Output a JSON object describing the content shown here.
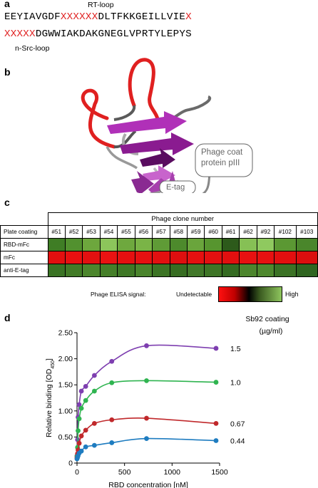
{
  "panels": {
    "a": "a",
    "b": "b",
    "c": "c",
    "d": "d"
  },
  "panel_a": {
    "rt_loop_label": "RT-loop",
    "nsrc_loop_label": "n-Src-loop",
    "line1": [
      {
        "text": "EEYIAVGDF",
        "color": "black"
      },
      {
        "text": "XXXXXX",
        "color": "red"
      },
      {
        "text": "DLTFKKGEILLVIE",
        "color": "black"
      },
      {
        "text": "X",
        "color": "red"
      }
    ],
    "line2": [
      {
        "text": "XXXXX",
        "color": "red"
      },
      {
        "text": "DGWWIAKDAKGNEGLVPRTYLEPYS",
        "color": "black"
      }
    ]
  },
  "panel_b": {
    "coat_label_1": "Phage coat",
    "coat_label_2": "protein pIII",
    "etag_label": "E-tag"
  },
  "panel_c": {
    "table_title": "Phage clone number",
    "row_header": "Plate coating",
    "clones": [
      "#51",
      "#52",
      "#53",
      "#54",
      "#55",
      "#56",
      "#57",
      "#58",
      "#59",
      "#60",
      "#61",
      "#62",
      "#92",
      "#102",
      "#103"
    ],
    "rows": [
      {
        "label": "RBD-mFc",
        "colors": [
          "#3f7d25",
          "#52912f",
          "#6da73d",
          "#8cc55b",
          "#6ea83e",
          "#7ab447",
          "#5f9b36",
          "#4d8a2c",
          "#6aa53c",
          "#57952f",
          "#2d5a1b",
          "#86c055",
          "#8fc95f",
          "#5b9833",
          "#4a862b"
        ]
      },
      {
        "label": "mFc",
        "colors": [
          "#e30f0f",
          "#e81010",
          "#e31010",
          "#ea1212",
          "#e51010",
          "#e61111",
          "#e21010",
          "#de0f0f",
          "#e51010",
          "#e31010",
          "#e10f0f",
          "#e81111",
          "#e71111",
          "#e20f0f",
          "#db0e0e"
        ]
      },
      {
        "label": "anti-E-tag",
        "colors": [
          "#3a7324",
          "#427b27",
          "#4c862d",
          "#457f29",
          "#3f7826",
          "#4a842c",
          "#3c7425",
          "#376d22",
          "#42782a",
          "#3e7526",
          "#346b22",
          "#4c852d",
          "#4e882e",
          "#3b7225",
          "#2f6520"
        ]
      }
    ],
    "legend_label": "Phage ELISA signal:",
    "legend_low": "Undetectable",
    "legend_high": "High"
  },
  "chart_data": {
    "type": "line",
    "xlabel": "RBD concentration [nM]",
    "ylabel": "Relative binding [OD450]",
    "ylabel_main": "Relative binding [OD",
    "ylabel_sub": "450",
    "ylabel_end": "]",
    "xlim": [
      0,
      1500
    ],
    "ylim": [
      0,
      2.5
    ],
    "xticks": [
      0,
      500,
      1000,
      1500
    ],
    "yticks": [
      0,
      0.5,
      1.0,
      1.5,
      2.0,
      2.5
    ],
    "ytick_labels": [
      "0",
      "0.50",
      "1.00",
      "1.50",
      "2.00",
      "2.50"
    ],
    "legend_title_1": "Sb92 coating",
    "legend_title_2": "(µg/ml)",
    "x": [
      0,
      5.7,
      11.4,
      22.9,
      45.7,
      91.4,
      182.8,
      365.6,
      731.2,
      1462.5
    ],
    "series": [
      {
        "name": "1.5",
        "color": "#7e3fb0",
        "values": [
          0.14,
          0.45,
          0.88,
          1.12,
          1.38,
          1.47,
          1.68,
          1.95,
          2.25,
          2.2
        ]
      },
      {
        "name": "1.0",
        "color": "#2fb450",
        "values": [
          0.13,
          0.3,
          0.62,
          0.85,
          1.05,
          1.2,
          1.38,
          1.54,
          1.58,
          1.55
        ]
      },
      {
        "name": "0.67",
        "color": "#c0282b",
        "values": [
          0.1,
          0.18,
          0.25,
          0.38,
          0.52,
          0.63,
          0.76,
          0.83,
          0.86,
          0.76
        ]
      },
      {
        "name": "0.44",
        "color": "#1e7cc0",
        "values": [
          0.08,
          0.11,
          0.14,
          0.19,
          0.23,
          0.31,
          0.34,
          0.39,
          0.47,
          0.43
        ]
      }
    ]
  }
}
